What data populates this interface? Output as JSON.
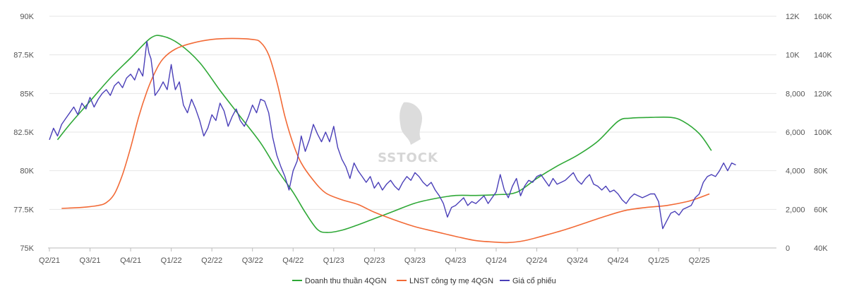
{
  "chart_data": {
    "type": "line",
    "title": "",
    "watermark": "SSTOCK",
    "x_labels": [
      "Q2/21",
      "Q3/21",
      "Q4/21",
      "Q1/22",
      "Q2/22",
      "Q3/22",
      "Q4/22",
      "Q1/23",
      "Q2/23",
      "Q3/23",
      "Q4/23",
      "Q1/24",
      "Q2/24",
      "Q3/24",
      "Q4/24",
      "Q1/25",
      "Q2/25"
    ],
    "xlim": [
      0,
      17.9
    ],
    "axes": {
      "left": {
        "min": 75000,
        "max": 90000,
        "ticks": [
          "75K",
          "77.5K",
          "80K",
          "82.5K",
          "85K",
          "87.5K",
          "90K"
        ]
      },
      "right1": {
        "min": 0,
        "max": 12000,
        "ticks": [
          "0",
          "2,000",
          "4,000",
          "6,000",
          "8,000",
          "10K",
          "12K"
        ]
      },
      "right2": {
        "min": 40000,
        "max": 160000,
        "ticks": [
          "40K",
          "60K",
          "80K",
          "100K",
          "120K",
          "140K",
          "160K"
        ]
      }
    },
    "colors": {
      "revenue": "#2ea836",
      "profit": "#f26a36",
      "price": "#4a3fb8",
      "grid": "#e6e6e6",
      "axis": "#bbbbbb"
    },
    "legend": [
      "Doanh thu thuần 4QGN",
      "LNST công ty mẹ 4QGN",
      "Giá cổ phiếu"
    ],
    "series": [
      {
        "name": "Doanh thu thuần 4QGN",
        "axis": "left",
        "points": [
          [
            0.2,
            82.0
          ],
          [
            0.5,
            83.0
          ],
          [
            1.0,
            84.5
          ],
          [
            1.5,
            86.0
          ],
          [
            2.0,
            87.3
          ],
          [
            2.5,
            88.6
          ],
          [
            2.8,
            88.7
          ],
          [
            3.2,
            88.2
          ],
          [
            3.7,
            87.0
          ],
          [
            4.2,
            85.2
          ],
          [
            4.7,
            83.5
          ],
          [
            5.2,
            81.8
          ],
          [
            5.6,
            80.1
          ],
          [
            6.0,
            78.6
          ],
          [
            6.3,
            77.3
          ],
          [
            6.6,
            76.2
          ],
          [
            6.85,
            76.0
          ],
          [
            7.2,
            76.15
          ],
          [
            7.6,
            76.5
          ],
          [
            8.0,
            76.9
          ],
          [
            8.5,
            77.4
          ],
          [
            9.0,
            77.9
          ],
          [
            9.5,
            78.2
          ],
          [
            10.0,
            78.4
          ],
          [
            10.5,
            78.4
          ],
          [
            11.0,
            78.45
          ],
          [
            11.5,
            78.6
          ],
          [
            12.0,
            79.5
          ],
          [
            12.5,
            80.3
          ],
          [
            13.0,
            81.0
          ],
          [
            13.5,
            81.9
          ],
          [
            14.0,
            83.2
          ],
          [
            14.3,
            83.4
          ],
          [
            14.8,
            83.45
          ],
          [
            15.3,
            83.45
          ],
          [
            15.6,
            83.2
          ],
          [
            16.0,
            82.4
          ],
          [
            16.3,
            81.3
          ]
        ]
      },
      {
        "name": "LNST công ty mẹ 4QGN",
        "axis": "right1",
        "points": [
          [
            0.3,
            2050
          ],
          [
            0.8,
            2100
          ],
          [
            1.2,
            2200
          ],
          [
            1.4,
            2350
          ],
          [
            1.6,
            2800
          ],
          [
            1.8,
            3800
          ],
          [
            2.0,
            5200
          ],
          [
            2.2,
            6800
          ],
          [
            2.4,
            8100
          ],
          [
            2.6,
            9100
          ],
          [
            2.8,
            9800
          ],
          [
            3.1,
            10300
          ],
          [
            3.5,
            10600
          ],
          [
            4.0,
            10800
          ],
          [
            4.5,
            10850
          ],
          [
            5.0,
            10800
          ],
          [
            5.2,
            10650
          ],
          [
            5.4,
            10000
          ],
          [
            5.6,
            8600
          ],
          [
            5.8,
            6800
          ],
          [
            6.0,
            5400
          ],
          [
            6.2,
            4400
          ],
          [
            6.5,
            3500
          ],
          [
            6.8,
            2850
          ],
          [
            7.2,
            2500
          ],
          [
            7.6,
            2250
          ],
          [
            8.0,
            1850
          ],
          [
            8.5,
            1450
          ],
          [
            9.0,
            1100
          ],
          [
            9.5,
            850
          ],
          [
            10.0,
            600
          ],
          [
            10.5,
            380
          ],
          [
            11.0,
            300
          ],
          [
            11.3,
            280
          ],
          [
            11.7,
            380
          ],
          [
            12.2,
            650
          ],
          [
            12.7,
            950
          ],
          [
            13.2,
            1300
          ],
          [
            13.7,
            1650
          ],
          [
            14.2,
            1950
          ],
          [
            14.7,
            2100
          ],
          [
            15.2,
            2200
          ],
          [
            15.7,
            2400
          ],
          [
            16.0,
            2600
          ],
          [
            16.25,
            2800
          ]
        ]
      },
      {
        "name": "Giá cổ phiếu",
        "axis": "right2",
        "points": [
          [
            0.0,
            96
          ],
          [
            0.1,
            102
          ],
          [
            0.2,
            98
          ],
          [
            0.3,
            104
          ],
          [
            0.4,
            107
          ],
          [
            0.5,
            110
          ],
          [
            0.6,
            113
          ],
          [
            0.7,
            109
          ],
          [
            0.8,
            115
          ],
          [
            0.9,
            112
          ],
          [
            1.0,
            118
          ],
          [
            1.1,
            113
          ],
          [
            1.2,
            117
          ],
          [
            1.3,
            120
          ],
          [
            1.4,
            122
          ],
          [
            1.5,
            119
          ],
          [
            1.6,
            124
          ],
          [
            1.7,
            126
          ],
          [
            1.8,
            123
          ],
          [
            1.9,
            128
          ],
          [
            2.0,
            130
          ],
          [
            2.1,
            127
          ],
          [
            2.2,
            133
          ],
          [
            2.3,
            129
          ],
          [
            2.4,
            147
          ],
          [
            2.45,
            141
          ],
          [
            2.5,
            138
          ],
          [
            2.55,
            130
          ],
          [
            2.6,
            119
          ],
          [
            2.7,
            122
          ],
          [
            2.8,
            126
          ],
          [
            2.9,
            122
          ],
          [
            3.0,
            135
          ],
          [
            3.05,
            128
          ],
          [
            3.1,
            122
          ],
          [
            3.2,
            126
          ],
          [
            3.25,
            120
          ],
          [
            3.3,
            114
          ],
          [
            3.4,
            110
          ],
          [
            3.5,
            117
          ],
          [
            3.6,
            112
          ],
          [
            3.7,
            106
          ],
          [
            3.8,
            98
          ],
          [
            3.9,
            102
          ],
          [
            4.0,
            109
          ],
          [
            4.1,
            106
          ],
          [
            4.2,
            115
          ],
          [
            4.3,
            111
          ],
          [
            4.4,
            103
          ],
          [
            4.5,
            108
          ],
          [
            4.6,
            112
          ],
          [
            4.7,
            106
          ],
          [
            4.8,
            103
          ],
          [
            4.9,
            108
          ],
          [
            5.0,
            114
          ],
          [
            5.1,
            110
          ],
          [
            5.2,
            117
          ],
          [
            5.3,
            116
          ],
          [
            5.4,
            110
          ],
          [
            5.5,
            97
          ],
          [
            5.6,
            88
          ],
          [
            5.7,
            82
          ],
          [
            5.8,
            77
          ],
          [
            5.9,
            70
          ],
          [
            6.0,
            80
          ],
          [
            6.1,
            85
          ],
          [
            6.2,
            98
          ],
          [
            6.3,
            90
          ],
          [
            6.4,
            96
          ],
          [
            6.5,
            104
          ],
          [
            6.6,
            99
          ],
          [
            6.7,
            95
          ],
          [
            6.8,
            100
          ],
          [
            6.9,
            95
          ],
          [
            7.0,
            103
          ],
          [
            7.1,
            92
          ],
          [
            7.2,
            86
          ],
          [
            7.3,
            82
          ],
          [
            7.4,
            76
          ],
          [
            7.5,
            84
          ],
          [
            7.6,
            80
          ],
          [
            7.7,
            77
          ],
          [
            7.8,
            74
          ],
          [
            7.9,
            77
          ],
          [
            8.0,
            71
          ],
          [
            8.1,
            74
          ],
          [
            8.2,
            70
          ],
          [
            8.3,
            73
          ],
          [
            8.4,
            75
          ],
          [
            8.5,
            72
          ],
          [
            8.6,
            70
          ],
          [
            8.7,
            74
          ],
          [
            8.8,
            77
          ],
          [
            8.9,
            75
          ],
          [
            9.0,
            79
          ],
          [
            9.1,
            77
          ],
          [
            9.2,
            74
          ],
          [
            9.3,
            72
          ],
          [
            9.4,
            74
          ],
          [
            9.5,
            70
          ],
          [
            9.6,
            67
          ],
          [
            9.7,
            63
          ],
          [
            9.8,
            56
          ],
          [
            9.9,
            61
          ],
          [
            10.0,
            62
          ],
          [
            10.1,
            64
          ],
          [
            10.2,
            66
          ],
          [
            10.3,
            62
          ],
          [
            10.4,
            64
          ],
          [
            10.5,
            63
          ],
          [
            10.6,
            65
          ],
          [
            10.7,
            67
          ],
          [
            10.8,
            63
          ],
          [
            10.9,
            66
          ],
          [
            11.0,
            69
          ],
          [
            11.1,
            78
          ],
          [
            11.2,
            70
          ],
          [
            11.3,
            66
          ],
          [
            11.4,
            72
          ],
          [
            11.5,
            76
          ],
          [
            11.6,
            67
          ],
          [
            11.7,
            72
          ],
          [
            11.8,
            75
          ],
          [
            11.9,
            74
          ],
          [
            12.0,
            77
          ],
          [
            12.1,
            78
          ],
          [
            12.2,
            75
          ],
          [
            12.3,
            72
          ],
          [
            12.4,
            76
          ],
          [
            12.5,
            73
          ],
          [
            12.6,
            74
          ],
          [
            12.7,
            75
          ],
          [
            12.8,
            77
          ],
          [
            12.9,
            79
          ],
          [
            13.0,
            75
          ],
          [
            13.1,
            73
          ],
          [
            13.2,
            76
          ],
          [
            13.3,
            78
          ],
          [
            13.4,
            73
          ],
          [
            13.5,
            72
          ],
          [
            13.6,
            70
          ],
          [
            13.7,
            72
          ],
          [
            13.8,
            69
          ],
          [
            13.9,
            70
          ],
          [
            14.0,
            68
          ],
          [
            14.1,
            65
          ],
          [
            14.2,
            63
          ],
          [
            14.3,
            66
          ],
          [
            14.4,
            68
          ],
          [
            14.5,
            67
          ],
          [
            14.6,
            66
          ],
          [
            14.7,
            67
          ],
          [
            14.8,
            68
          ],
          [
            14.9,
            68
          ],
          [
            15.0,
            64
          ],
          [
            15.1,
            50
          ],
          [
            15.2,
            54
          ],
          [
            15.3,
            58
          ],
          [
            15.4,
            59
          ],
          [
            15.5,
            57
          ],
          [
            15.6,
            60
          ],
          [
            15.7,
            61
          ],
          [
            15.8,
            62
          ],
          [
            15.9,
            66
          ],
          [
            16.0,
            68
          ],
          [
            16.1,
            74
          ],
          [
            16.2,
            77
          ],
          [
            16.3,
            78
          ],
          [
            16.4,
            77
          ],
          [
            16.5,
            80
          ],
          [
            16.6,
            84
          ],
          [
            16.7,
            80
          ],
          [
            16.8,
            84
          ],
          [
            16.9,
            83
          ]
        ]
      }
    ]
  }
}
